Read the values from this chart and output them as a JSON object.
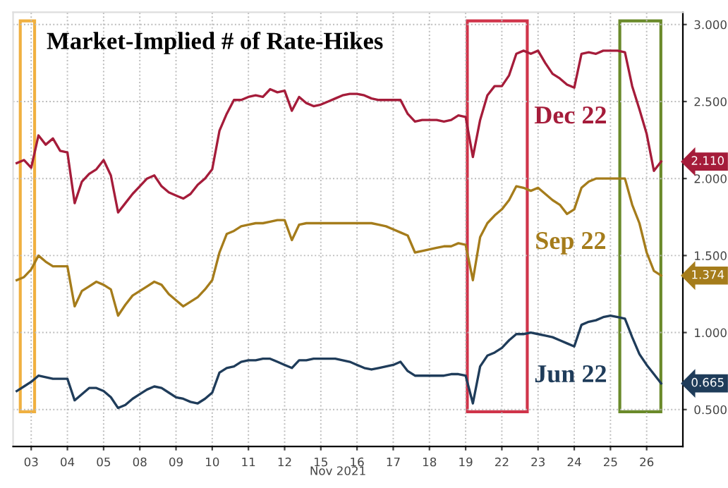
{
  "chart_data": {
    "type": "line",
    "title": "Market-Implied # of Rate-Hikes",
    "xlabel": "Nov 2021",
    "categories": [
      null,
      null,
      "03",
      null,
      null,
      null,
      null,
      "04",
      null,
      null,
      null,
      null,
      "05",
      null,
      null,
      null,
      null,
      "08",
      null,
      null,
      null,
      null,
      "09",
      null,
      null,
      null,
      null,
      "10",
      null,
      null,
      null,
      null,
      "11",
      null,
      null,
      null,
      null,
      "12",
      null,
      null,
      null,
      null,
      "15",
      null,
      null,
      null,
      null,
      "16",
      null,
      null,
      null,
      null,
      "17",
      null,
      null,
      null,
      null,
      "18",
      null,
      null,
      null,
      null,
      "19",
      null,
      null,
      null,
      null,
      "22",
      null,
      null,
      null,
      null,
      "23",
      null,
      null,
      null,
      null,
      "24",
      null,
      null,
      null,
      null,
      "25",
      null,
      null,
      null,
      null,
      "26",
      null,
      null
    ],
    "ylim": [
      0.26,
      3.08
    ],
    "yticks": [
      {
        "value": 0.5,
        "label": "0.500"
      },
      {
        "value": 1,
        "label": "1.000"
      },
      {
        "value": 1.5,
        "label": "1.500"
      },
      {
        "value": 2,
        "label": "2.000"
      },
      {
        "value": 2.5,
        "label": "2.500"
      },
      {
        "value": 3,
        "label": "3.000"
      }
    ],
    "grid": true,
    "legend": false,
    "marker": "none",
    "line_style": "solid",
    "series": [
      {
        "name": "Dec 22",
        "color": "#a51c3a",
        "values": [
          2.1,
          2.12,
          2.07,
          2.28,
          2.22,
          2.26,
          2.18,
          2.17,
          1.84,
          1.98,
          2.03,
          2.06,
          2.12,
          2.02,
          1.78,
          1.84,
          1.9,
          1.95,
          2.0,
          2.02,
          1.95,
          1.91,
          1.89,
          1.87,
          1.9,
          1.96,
          2.0,
          2.06,
          2.31,
          2.42,
          2.51,
          2.51,
          2.53,
          2.54,
          2.53,
          2.58,
          2.56,
          2.57,
          2.44,
          2.53,
          2.49,
          2.47,
          2.48,
          2.5,
          2.52,
          2.54,
          2.55,
          2.55,
          2.54,
          2.52,
          2.51,
          2.51,
          2.51,
          2.51,
          2.42,
          2.37,
          2.38,
          2.38,
          2.38,
          2.37,
          2.38,
          2.41,
          2.4,
          2.14,
          2.38,
          2.54,
          2.6,
          2.6,
          2.67,
          2.81,
          2.83,
          2.81,
          2.83,
          2.75,
          2.68,
          2.65,
          2.61,
          2.59,
          2.81,
          2.82,
          2.81,
          2.83,
          2.83,
          2.83,
          2.82,
          2.6,
          2.45,
          2.29,
          2.05,
          2.11
        ]
      },
      {
        "name": "Sep 22",
        "color": "#a57c1b",
        "values": [
          1.34,
          1.36,
          1.41,
          1.5,
          1.46,
          1.43,
          1.43,
          1.43,
          1.17,
          1.27,
          1.3,
          1.33,
          1.31,
          1.28,
          1.11,
          1.18,
          1.24,
          1.27,
          1.3,
          1.33,
          1.31,
          1.25,
          1.21,
          1.17,
          1.2,
          1.23,
          1.28,
          1.34,
          1.52,
          1.64,
          1.66,
          1.69,
          1.7,
          1.71,
          1.71,
          1.72,
          1.73,
          1.73,
          1.6,
          1.7,
          1.71,
          1.71,
          1.71,
          1.71,
          1.71,
          1.71,
          1.71,
          1.71,
          1.71,
          1.71,
          1.7,
          1.69,
          1.67,
          1.65,
          1.63,
          1.52,
          1.53,
          1.54,
          1.55,
          1.56,
          1.56,
          1.58,
          1.57,
          1.34,
          1.62,
          1.71,
          1.76,
          1.8,
          1.86,
          1.95,
          1.94,
          1.92,
          1.94,
          1.9,
          1.86,
          1.83,
          1.77,
          1.8,
          1.94,
          1.98,
          2.0,
          2.0,
          2.0,
          2.0,
          2.0,
          1.83,
          1.71,
          1.52,
          1.4,
          1.37
        ]
      },
      {
        "name": "Jun 22",
        "color": "#1f3c5a",
        "values": [
          0.62,
          0.65,
          0.68,
          0.72,
          0.71,
          0.7,
          0.7,
          0.7,
          0.56,
          0.6,
          0.64,
          0.64,
          0.62,
          0.58,
          0.51,
          0.53,
          0.57,
          0.6,
          0.63,
          0.65,
          0.64,
          0.61,
          0.58,
          0.57,
          0.55,
          0.54,
          0.57,
          0.61,
          0.74,
          0.77,
          0.78,
          0.81,
          0.82,
          0.82,
          0.83,
          0.83,
          0.81,
          0.79,
          0.77,
          0.82,
          0.82,
          0.83,
          0.83,
          0.83,
          0.83,
          0.82,
          0.81,
          0.79,
          0.77,
          0.76,
          0.77,
          0.78,
          0.79,
          0.81,
          0.75,
          0.72,
          0.72,
          0.72,
          0.72,
          0.72,
          0.73,
          0.73,
          0.72,
          0.54,
          0.78,
          0.85,
          0.87,
          0.9,
          0.95,
          0.99,
          0.99,
          1.0,
          0.99,
          0.98,
          0.97,
          0.95,
          0.93,
          0.91,
          1.05,
          1.07,
          1.08,
          1.1,
          1.11,
          1.1,
          1.09,
          0.97,
          0.86,
          0.79,
          0.73,
          0.67
        ]
      }
    ],
    "annotations": [
      "2.110",
      "1.374",
      "0.665"
    ]
  }
}
